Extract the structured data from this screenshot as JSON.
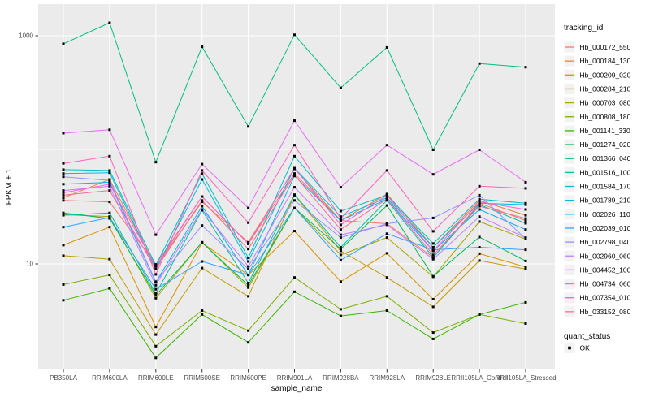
{
  "chart_data": {
    "type": "line",
    "title": "",
    "xlabel": "sample_name",
    "ylabel": "FPKM + 1",
    "y_scale": "log10",
    "y_tick_values": [
      10,
      1000
    ],
    "y_tick_labels": [
      "10",
      "1000"
    ],
    "y_minor_gridline_values": [
      100
    ],
    "ylim": [
      1.2,
      1800
    ],
    "grid": true,
    "legend_position": "right",
    "panel_bg": "#EBEBEB",
    "grid_color": "#FFFFFF",
    "tick_color": "#333333",
    "tick_label_color": "#4D4D4D",
    "title_color": "#000000",
    "point_color": "#000000",
    "legend_key_bg": "#F2F2F2",
    "categories": [
      "PB350LA",
      "RRIM600LA",
      "RRIM600LE",
      "RRIM600SE",
      "RRIM600PE",
      "RRIM901LA",
      "RRIM928BA",
      "RRIM928LA",
      "RRIM928LE",
      "RRII105LA_Control",
      "RRII105LA_Stressed"
    ],
    "legend": {
      "tracking_title": "tracking_id",
      "quant_title": "quant_status",
      "quant_items": [
        {
          "label": "OK",
          "marker": "black-square"
        }
      ]
    },
    "series": [
      {
        "name": "Hb_000172_550",
        "color": "#F8766D",
        "values": [
          36,
          35,
          9.9,
          39,
          15,
          62,
          24,
          22.5,
          11.4,
          34,
          24
        ]
      },
      {
        "name": "Hb_000184_130",
        "color": "#EA8331",
        "values": [
          38,
          55,
          9.5,
          35,
          15.5,
          68,
          24,
          41,
          14,
          36,
          26.7
        ]
      },
      {
        "name": "Hb_000209_020",
        "color": "#D89000",
        "values": [
          14.6,
          21,
          2.8,
          15.3,
          8.0,
          19.4,
          7.0,
          12.4,
          4.9,
          12.3,
          9.4
        ]
      },
      {
        "name": "Hb_000284_210",
        "color": "#C09B00",
        "values": [
          11.8,
          11,
          2.4,
          9.2,
          5.2,
          40,
          13,
          7.6,
          4.2,
          10.7,
          9.0
        ]
      },
      {
        "name": "Hb_000703_080",
        "color": "#A3A500",
        "values": [
          27,
          26,
          5.0,
          15.5,
          6.2,
          31,
          12,
          17,
          7.7,
          23.5,
          16.5
        ]
      },
      {
        "name": "Hb_000808_180",
        "color": "#7CAE00",
        "values": [
          6.6,
          8.0,
          1.9,
          3.9,
          2.6,
          7.6,
          4.0,
          5.2,
          2.5,
          3.6,
          3.0
        ]
      },
      {
        "name": "Hb_001141_330",
        "color": "#39B600",
        "values": [
          4.8,
          6.1,
          1.5,
          3.6,
          2.05,
          5.7,
          3.5,
          3.9,
          2.2,
          3.6,
          4.6
        ]
      },
      {
        "name": "Hb_001274_020",
        "color": "#00BB4E",
        "values": [
          28,
          25,
          5.3,
          15.4,
          6.5,
          31,
          13.5,
          32.5,
          7.8,
          17.2,
          10.6
        ]
      },
      {
        "name": "Hb_001366_040",
        "color": "#00BF7D",
        "values": [
          850,
          1300,
          78,
          800,
          160,
          1020,
          350,
          790,
          100,
          570,
          530
        ]
      },
      {
        "name": "Hb_001516_100",
        "color": "#00C1A3",
        "values": [
          26.7,
          28,
          5.5,
          29.5,
          6.8,
          40.5,
          14,
          36,
          11.4,
          33,
          22.7
        ]
      },
      {
        "name": "Hb_001584_170",
        "color": "#00BFC4",
        "values": [
          67,
          66,
          9.7,
          62,
          11.3,
          88,
          29,
          40,
          15.1,
          37,
          34
        ]
      },
      {
        "name": "Hb_001789_210",
        "color": "#00BAE0",
        "values": [
          62,
          63,
          9.0,
          55,
          10.5,
          69,
          26,
          38,
          14,
          34,
          33
        ]
      },
      {
        "name": "Hb_002026_110",
        "color": "#00B0F6",
        "values": [
          50,
          52,
          6.9,
          32,
          8.0,
          59,
          24,
          37,
          13,
          30,
          20
        ]
      },
      {
        "name": "Hb_002039_010",
        "color": "#35A2FF",
        "values": [
          21,
          25.5,
          6.0,
          10.5,
          8.0,
          31,
          10.8,
          18.4,
          13.3,
          14,
          13.3
        ]
      },
      {
        "name": "Hb_002798_040",
        "color": "#9590FF",
        "values": [
          58,
          54,
          7.0,
          21.7,
          9.0,
          36,
          17,
          22.5,
          25.3,
          40,
          16.6
        ]
      },
      {
        "name": "Hb_002960_060",
        "color": "#C77CFF",
        "values": [
          44,
          48,
          6.5,
          30,
          9.5,
          47,
          18,
          22,
          11,
          26,
          17
        ]
      },
      {
        "name": "Hb_004452_100",
        "color": "#E76BF3",
        "values": [
          140,
          150,
          18,
          75,
          31,
          180,
          47,
          110,
          61,
          100,
          52
        ]
      },
      {
        "name": "Hb_004734_060",
        "color": "#FA62DB",
        "values": [
          42,
          50,
          9.5,
          39,
          15,
          69,
          22,
          40,
          13,
          35,
          30
        ]
      },
      {
        "name": "Hb_007354_010",
        "color": "#FF62BC",
        "values": [
          76,
          88,
          8.1,
          66,
          23,
          110,
          25,
          66,
          19.3,
          48,
          46
        ]
      },
      {
        "name": "Hb_033152_080",
        "color": "#FF6A98",
        "values": [
          40,
          44,
          9.0,
          36,
          13.5,
          60,
          20,
          37,
          12,
          32,
          25
        ]
      }
    ]
  }
}
